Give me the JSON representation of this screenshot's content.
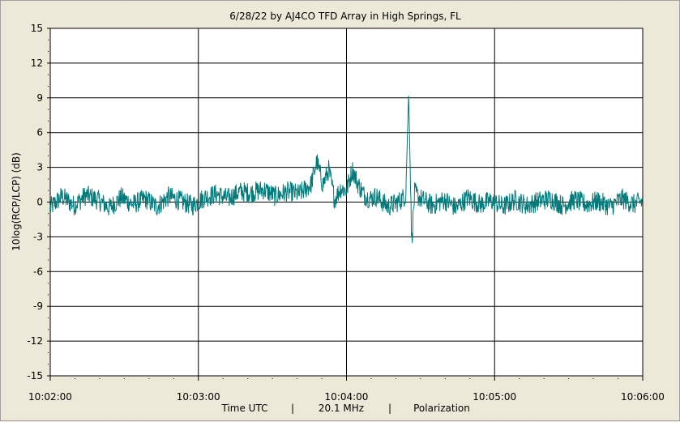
{
  "chart_data": {
    "type": "line",
    "title": "6/28/22  by  AJ4CO TFD Array  in  High Springs, FL",
    "ylabel": "10log(RCP/LCP)  (dB)",
    "xlabel_parts": [
      "Time UTC",
      "|",
      "20.1 MHz",
      "|",
      "Polarization"
    ],
    "ylim": [
      -15,
      15
    ],
    "yticks": [
      -15,
      -12,
      -9,
      -6,
      -3,
      0,
      3,
      6,
      9,
      12,
      15
    ],
    "xticks": [
      "10:02:00",
      "10:03:00",
      "10:04:00",
      "10:05:00",
      "10:06:00"
    ],
    "xlim_minutes": [
      0,
      4
    ],
    "grid": true,
    "series_color": "#007a7a",
    "series": [
      {
        "x_minutes": [
          0,
          0.08,
          0.16,
          0.24,
          0.32,
          0.4,
          0.48,
          0.56,
          0.64,
          0.72,
          0.8,
          0.88,
          0.96,
          1.04,
          1.12,
          1.2,
          1.28,
          1.36,
          1.44,
          1.52,
          1.6,
          1.68,
          1.76,
          1.8,
          1.84,
          1.88,
          1.92,
          1.96,
          2.0,
          2.04,
          2.08,
          2.12,
          2.16,
          2.2,
          2.28,
          2.36,
          2.4,
          2.42,
          2.44,
          2.46,
          2.5,
          2.58,
          2.66,
          2.74,
          2.82,
          2.9,
          2.98,
          3.06,
          3.14,
          3.22,
          3.3,
          3.38,
          3.46,
          3.54,
          3.62,
          3.7,
          3.78,
          3.86,
          3.94,
          4.0
        ],
        "values": [
          -0.5,
          0.5,
          -0.3,
          0.6,
          0.2,
          -0.5,
          0.4,
          -0.2,
          0.3,
          -0.4,
          0.5,
          0.1,
          -0.3,
          0.4,
          0.7,
          0.3,
          0.9,
          0.8,
          1.1,
          0.5,
          0.9,
          0.7,
          1.5,
          3.5,
          1.5,
          2.8,
          0.2,
          1.2,
          1.0,
          2.8,
          1.5,
          0.6,
          0.3,
          0.5,
          -0.4,
          0.1,
          0.6,
          9.5,
          -3.5,
          0.8,
          0.3,
          -0.3,
          0.2,
          -0.5,
          0.4,
          -0.2,
          0.1,
          -0.4,
          0.2,
          -0.3,
          0.1,
          0.3,
          -0.3,
          0.2,
          -0.2,
          0.1,
          -0.4,
          0.3,
          -0.2,
          0.1
        ]
      }
    ]
  }
}
